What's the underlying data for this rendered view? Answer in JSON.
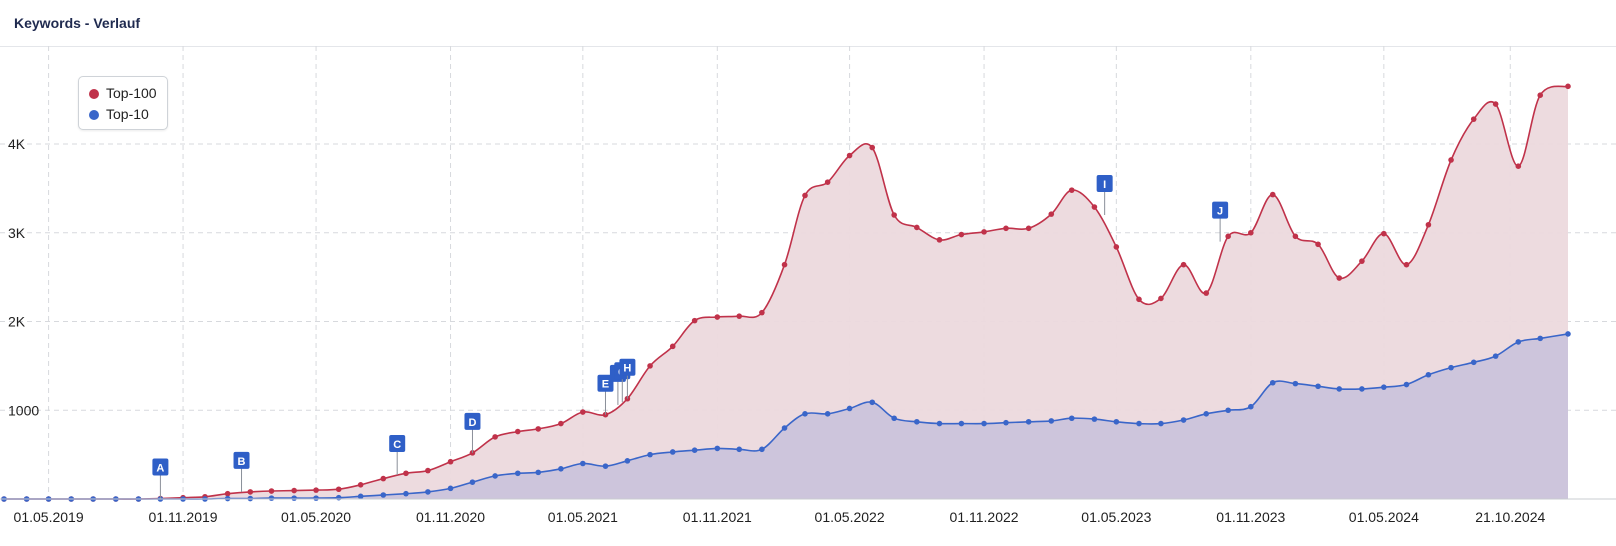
{
  "header": {
    "title": "Keywords - Verlauf"
  },
  "legend": {
    "top100": "Top-100",
    "top10": "Top-10"
  },
  "colors": {
    "top100": "#c0324a",
    "top10": "#3a66c9",
    "top100_fill": "#ecd9dd",
    "top10_fill": "#cbc4db",
    "flag": "#2f5fc7"
  },
  "chart_data": {
    "type": "area",
    "title": "Keywords - Verlauf",
    "xlabel": "",
    "ylabel": "",
    "x_ticks": [
      "01.05.2019",
      "01.11.2019",
      "01.05.2020",
      "01.11.2020",
      "01.05.2021",
      "01.11.2021",
      "01.05.2022",
      "01.11.2022",
      "01.05.2023",
      "01.11.2023",
      "01.05.2024",
      "21.10.2024"
    ],
    "y_ticks": [
      "1000",
      "2K",
      "3K",
      "4K"
    ],
    "y_tick_values": [
      1000,
      2000,
      3000,
      4000
    ],
    "ylim": [
      0,
      5000
    ],
    "xlim": [
      "2019-03-01",
      "2025-01-08"
    ],
    "grid": true,
    "legend_position": "top-left",
    "series": [
      {
        "name": "Top-100",
        "points": [
          [
            "2019-03-01",
            0
          ],
          [
            "2019-04-01",
            0
          ],
          [
            "2019-05-01",
            0
          ],
          [
            "2019-06-01",
            0
          ],
          [
            "2019-07-01",
            0
          ],
          [
            "2019-08-01",
            0
          ],
          [
            "2019-09-01",
            0
          ],
          [
            "2019-10-01",
            5
          ],
          [
            "2019-11-01",
            15
          ],
          [
            "2019-12-01",
            25
          ],
          [
            "2020-01-01",
            60
          ],
          [
            "2020-02-01",
            80
          ],
          [
            "2020-03-01",
            90
          ],
          [
            "2020-04-01",
            95
          ],
          [
            "2020-05-01",
            100
          ],
          [
            "2020-06-01",
            110
          ],
          [
            "2020-07-01",
            160
          ],
          [
            "2020-08-01",
            230
          ],
          [
            "2020-09-01",
            290
          ],
          [
            "2020-10-01",
            320
          ],
          [
            "2020-11-01",
            420
          ],
          [
            "2020-12-01",
            520
          ],
          [
            "2021-01-01",
            700
          ],
          [
            "2021-02-01",
            760
          ],
          [
            "2021-03-01",
            790
          ],
          [
            "2021-04-01",
            850
          ],
          [
            "2021-05-01",
            980
          ],
          [
            "2021-06-01",
            950
          ],
          [
            "2021-07-01",
            1130
          ],
          [
            "2021-08-01",
            1500
          ],
          [
            "2021-09-01",
            1720
          ],
          [
            "2021-10-01",
            2010
          ],
          [
            "2021-11-01",
            2050
          ],
          [
            "2021-12-01",
            2060
          ],
          [
            "2022-01-01",
            2100
          ],
          [
            "2022-02-01",
            2640
          ],
          [
            "2022-03-01",
            3420
          ],
          [
            "2022-04-01",
            3570
          ],
          [
            "2022-05-01",
            3870
          ],
          [
            "2022-06-01",
            3960
          ],
          [
            "2022-07-01",
            3200
          ],
          [
            "2022-08-01",
            3060
          ],
          [
            "2022-09-01",
            2920
          ],
          [
            "2022-10-01",
            2980
          ],
          [
            "2022-11-01",
            3010
          ],
          [
            "2022-12-01",
            3050
          ],
          [
            "2023-01-01",
            3050
          ],
          [
            "2023-02-01",
            3210
          ],
          [
            "2023-03-01",
            3480
          ],
          [
            "2023-04-01",
            3290
          ],
          [
            "2023-05-01",
            2840
          ],
          [
            "2023-06-01",
            2250
          ],
          [
            "2023-07-01",
            2260
          ],
          [
            "2023-08-01",
            2640
          ],
          [
            "2023-09-01",
            2320
          ],
          [
            "2023-10-01",
            2960
          ],
          [
            "2023-11-01",
            3000
          ],
          [
            "2023-12-01",
            3430
          ],
          [
            "2024-01-01",
            2960
          ],
          [
            "2024-02-01",
            2870
          ],
          [
            "2024-03-01",
            2490
          ],
          [
            "2024-04-01",
            2680
          ],
          [
            "2024-05-01",
            2990
          ],
          [
            "2024-06-01",
            2640
          ],
          [
            "2024-07-01",
            3090
          ],
          [
            "2024-08-01",
            3820
          ],
          [
            "2024-09-01",
            4280
          ],
          [
            "2024-10-01",
            4450
          ],
          [
            "2024-11-01",
            3750
          ],
          [
            "2024-12-01",
            4550
          ],
          [
            "2025-01-08",
            4650
          ]
        ]
      },
      {
        "name": "Top-10",
        "points": [
          [
            "2019-03-01",
            0
          ],
          [
            "2019-04-01",
            0
          ],
          [
            "2019-05-01",
            0
          ],
          [
            "2019-06-01",
            0
          ],
          [
            "2019-07-01",
            0
          ],
          [
            "2019-08-01",
            0
          ],
          [
            "2019-09-01",
            0
          ],
          [
            "2019-10-01",
            0
          ],
          [
            "2019-11-01",
            0
          ],
          [
            "2019-12-01",
            0
          ],
          [
            "2020-01-01",
            5
          ],
          [
            "2020-02-01",
            5
          ],
          [
            "2020-03-01",
            10
          ],
          [
            "2020-04-01",
            10
          ],
          [
            "2020-05-01",
            10
          ],
          [
            "2020-06-01",
            15
          ],
          [
            "2020-07-01",
            30
          ],
          [
            "2020-08-01",
            45
          ],
          [
            "2020-09-01",
            60
          ],
          [
            "2020-10-01",
            80
          ],
          [
            "2020-11-01",
            120
          ],
          [
            "2020-12-01",
            190
          ],
          [
            "2021-01-01",
            260
          ],
          [
            "2021-02-01",
            290
          ],
          [
            "2021-03-01",
            300
          ],
          [
            "2021-04-01",
            340
          ],
          [
            "2021-05-01",
            400
          ],
          [
            "2021-06-01",
            370
          ],
          [
            "2021-07-01",
            430
          ],
          [
            "2021-08-01",
            500
          ],
          [
            "2021-09-01",
            530
          ],
          [
            "2021-10-01",
            550
          ],
          [
            "2021-11-01",
            570
          ],
          [
            "2021-12-01",
            560
          ],
          [
            "2022-01-01",
            560
          ],
          [
            "2022-02-01",
            800
          ],
          [
            "2022-03-01",
            960
          ],
          [
            "2022-04-01",
            960
          ],
          [
            "2022-05-01",
            1020
          ],
          [
            "2022-06-01",
            1090
          ],
          [
            "2022-07-01",
            910
          ],
          [
            "2022-08-01",
            870
          ],
          [
            "2022-09-01",
            850
          ],
          [
            "2022-10-01",
            850
          ],
          [
            "2022-11-01",
            850
          ],
          [
            "2022-12-01",
            860
          ],
          [
            "2023-01-01",
            870
          ],
          [
            "2023-02-01",
            880
          ],
          [
            "2023-03-01",
            910
          ],
          [
            "2023-04-01",
            900
          ],
          [
            "2023-05-01",
            870
          ],
          [
            "2023-06-01",
            850
          ],
          [
            "2023-07-01",
            850
          ],
          [
            "2023-08-01",
            890
          ],
          [
            "2023-09-01",
            960
          ],
          [
            "2023-10-01",
            1000
          ],
          [
            "2023-11-01",
            1040
          ],
          [
            "2023-12-01",
            1310
          ],
          [
            "2024-01-01",
            1300
          ],
          [
            "2024-02-01",
            1270
          ],
          [
            "2024-03-01",
            1240
          ],
          [
            "2024-04-01",
            1240
          ],
          [
            "2024-05-01",
            1260
          ],
          [
            "2024-06-01",
            1290
          ],
          [
            "2024-07-01",
            1400
          ],
          [
            "2024-08-01",
            1480
          ],
          [
            "2024-09-01",
            1540
          ],
          [
            "2024-10-01",
            1610
          ],
          [
            "2024-11-01",
            1770
          ],
          [
            "2024-12-01",
            1810
          ],
          [
            "2025-01-08",
            1860
          ]
        ]
      }
    ],
    "annotations": [
      {
        "label": "A",
        "date": "2019-10-01",
        "value": 5
      },
      {
        "label": "B",
        "date": "2020-01-20",
        "value": 80
      },
      {
        "label": "C",
        "date": "2020-08-20",
        "value": 270
      },
      {
        "label": "D",
        "date": "2020-12-01",
        "value": 520
      },
      {
        "label": "E",
        "date": "2021-06-01",
        "value": 950
      },
      {
        "label": "F",
        "date": "2021-06-18",
        "value": 1060
      },
      {
        "label": "G",
        "date": "2021-06-24",
        "value": 1090
      },
      {
        "label": "H",
        "date": "2021-07-01",
        "value": 1130
      },
      {
        "label": "I",
        "date": "2023-04-15",
        "value": 3200
      },
      {
        "label": "J",
        "date": "2023-09-20",
        "value": 2900
      }
    ]
  }
}
